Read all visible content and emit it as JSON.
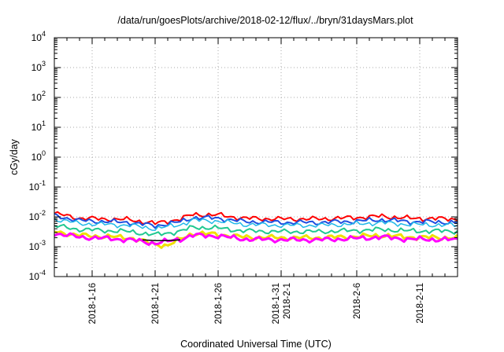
{
  "chart_data": {
    "type": "line",
    "title": "/data/run/goesPlots/archive/2018-02-12/flux/../bryn/31daysMars.plot",
    "xlabel": "Coordinated Universal Time (UTC)",
    "ylabel": "cGy/day",
    "y_scale": "log",
    "ylim": [
      0.0001,
      10000
    ],
    "xlim": [
      "2018-01-13",
      "2018-02-14"
    ],
    "grid": true,
    "y_ticks": [
      {
        "base": "10",
        "exp": "-4"
      },
      {
        "base": "10",
        "exp": "-3"
      },
      {
        "base": "10",
        "exp": "-2"
      },
      {
        "base": "10",
        "exp": "-1"
      },
      {
        "base": "10",
        "exp": "0"
      },
      {
        "base": "10",
        "exp": "1"
      },
      {
        "base": "10",
        "exp": "2"
      },
      {
        "base": "10",
        "exp": "3"
      },
      {
        "base": "10",
        "exp": "4"
      }
    ],
    "x_ticks": [
      {
        "value": "2018-01-16",
        "lines": [
          "2018-1-16"
        ]
      },
      {
        "value": "2018-01-21",
        "lines": [
          "2018-1-21"
        ]
      },
      {
        "value": "2018-01-26",
        "lines": [
          "2018-1-26"
        ]
      },
      {
        "value": "2018-01-31",
        "lines": [
          "2018-1-31",
          "2018-2-1"
        ]
      },
      {
        "value": "2018-02-06",
        "lines": [
          "2018-2-6"
        ]
      },
      {
        "value": "2018-02-11",
        "lines": [
          "2018-2-11"
        ]
      }
    ],
    "series": [
      {
        "color": "#ff0000",
        "width": 2,
        "values": [
          {
            "x": "2018-01-13",
            "y": 0.013
          },
          {
            "x": "2018-01-15",
            "y": 0.009
          },
          {
            "x": "2018-01-17",
            "y": 0.0085
          },
          {
            "x": "2018-01-19",
            "y": 0.008
          },
          {
            "x": "2018-01-21",
            "y": 0.006
          },
          {
            "x": "2018-01-23",
            "y": 0.0085
          },
          {
            "x": "2018-01-24",
            "y": 0.012
          },
          {
            "x": "2018-01-26",
            "y": 0.0115
          },
          {
            "x": "2018-01-28",
            "y": 0.009
          },
          {
            "x": "2018-01-31",
            "y": 0.0085
          },
          {
            "x": "2018-02-03",
            "y": 0.0085
          },
          {
            "x": "2018-02-06",
            "y": 0.0095
          },
          {
            "x": "2018-02-08",
            "y": 0.0105
          },
          {
            "x": "2018-02-10",
            "y": 0.009
          },
          {
            "x": "2018-02-14",
            "y": 0.0085
          }
        ]
      },
      {
        "color": "#1f4fe0",
        "width": 2,
        "values": [
          {
            "x": "2018-01-13",
            "y": 0.011
          },
          {
            "x": "2018-01-15",
            "y": 0.0075
          },
          {
            "x": "2018-01-17",
            "y": 0.007
          },
          {
            "x": "2018-01-19",
            "y": 0.0065
          },
          {
            "x": "2018-01-21",
            "y": 0.005
          },
          {
            "x": "2018-01-23",
            "y": 0.0068
          },
          {
            "x": "2018-01-24",
            "y": 0.0095
          },
          {
            "x": "2018-01-26",
            "y": 0.009
          },
          {
            "x": "2018-01-28",
            "y": 0.007
          },
          {
            "x": "2018-01-31",
            "y": 0.0065
          },
          {
            "x": "2018-02-03",
            "y": 0.0065
          },
          {
            "x": "2018-02-06",
            "y": 0.0072
          },
          {
            "x": "2018-02-08",
            "y": 0.008
          },
          {
            "x": "2018-02-10",
            "y": 0.007
          },
          {
            "x": "2018-02-14",
            "y": 0.0065
          }
        ]
      },
      {
        "color": "#20b8e8",
        "width": 1.5,
        "values": [
          {
            "x": "2018-01-13",
            "y": 0.0085
          },
          {
            "x": "2018-01-15",
            "y": 0.006
          },
          {
            "x": "2018-01-17",
            "y": 0.0056
          },
          {
            "x": "2018-01-19",
            "y": 0.0052
          },
          {
            "x": "2018-01-21",
            "y": 0.004
          },
          {
            "x": "2018-01-23",
            "y": 0.0055
          },
          {
            "x": "2018-01-24",
            "y": 0.0078
          },
          {
            "x": "2018-01-26",
            "y": 0.0072
          },
          {
            "x": "2018-01-28",
            "y": 0.0056
          },
          {
            "x": "2018-01-31",
            "y": 0.0052
          },
          {
            "x": "2018-02-03",
            "y": 0.0052
          },
          {
            "x": "2018-02-06",
            "y": 0.0058
          },
          {
            "x": "2018-02-08",
            "y": 0.0064
          },
          {
            "x": "2018-02-10",
            "y": 0.0056
          },
          {
            "x": "2018-02-14",
            "y": 0.0052
          }
        ]
      },
      {
        "color": "#20c890",
        "width": 2,
        "values": [
          {
            "x": "2018-01-13",
            "y": 0.005
          },
          {
            "x": "2018-01-15",
            "y": 0.0038
          },
          {
            "x": "2018-01-17",
            "y": 0.0035
          },
          {
            "x": "2018-01-19",
            "y": 0.0032
          },
          {
            "x": "2018-01-21",
            "y": 0.0025
          },
          {
            "x": "2018-01-23",
            "y": 0.0033
          },
          {
            "x": "2018-01-24",
            "y": 0.0045
          },
          {
            "x": "2018-01-26",
            "y": 0.0042
          },
          {
            "x": "2018-01-28",
            "y": 0.0034
          },
          {
            "x": "2018-01-31",
            "y": 0.0032
          },
          {
            "x": "2018-02-03",
            "y": 0.0032
          },
          {
            "x": "2018-02-06",
            "y": 0.0035
          },
          {
            "x": "2018-02-08",
            "y": 0.0038
          },
          {
            "x": "2018-02-10",
            "y": 0.0034
          },
          {
            "x": "2018-02-14",
            "y": 0.0033
          }
        ]
      },
      {
        "color": "#f0e000",
        "width": 3,
        "values": [
          {
            "x": "2018-01-13",
            "y": 0.0032
          },
          {
            "x": "2018-01-15",
            "y": 0.0024
          },
          {
            "x": "2018-01-17",
            "y": 0.0022
          },
          {
            "x": "2018-01-19",
            "y": 0.002
          },
          {
            "x": "2018-01-21",
            "y": 0.0012
          },
          {
            "x": "2018-01-22",
            "y": 0.0011
          },
          {
            "x": "2018-01-23",
            "y": 0.0018
          },
          {
            "x": "2018-01-24",
            "y": 0.0028
          },
          {
            "x": "2018-01-26",
            "y": 0.0026
          },
          {
            "x": "2018-01-28",
            "y": 0.0021
          },
          {
            "x": "2018-01-31",
            "y": 0.002
          },
          {
            "x": "2018-02-03",
            "y": 0.002
          },
          {
            "x": "2018-02-06",
            "y": 0.0022
          },
          {
            "x": "2018-02-08",
            "y": 0.0024
          },
          {
            "x": "2018-02-10",
            "y": 0.0021
          },
          {
            "x": "2018-02-14",
            "y": 0.002
          }
        ]
      },
      {
        "color": "#ff00ff",
        "width": 3,
        "values": [
          {
            "x": "2018-01-13",
            "y": 0.0028
          },
          {
            "x": "2018-01-15",
            "y": 0.0021
          },
          {
            "x": "2018-01-17",
            "y": 0.0019
          },
          {
            "x": "2018-01-19",
            "y": 0.0017
          },
          {
            "x": "2018-01-21",
            "y": 0.0013
          },
          {
            "x": "2018-01-23",
            "y": 0.0018
          },
          {
            "x": "2018-01-24",
            "y": 0.0024
          },
          {
            "x": "2018-01-26",
            "y": 0.0023
          },
          {
            "x": "2018-01-28",
            "y": 0.0018
          },
          {
            "x": "2018-01-31",
            "y": 0.0017
          },
          {
            "x": "2018-02-03",
            "y": 0.0017
          },
          {
            "x": "2018-02-06",
            "y": 0.0019
          },
          {
            "x": "2018-02-08",
            "y": 0.0021
          },
          {
            "x": "2018-02-10",
            "y": 0.0018
          },
          {
            "x": "2018-02-14",
            "y": 0.0017
          }
        ]
      },
      {
        "color": "#000000",
        "width": 1.5,
        "values": [
          {
            "x": "2018-01-20",
            "y": 0.0017
          },
          {
            "x": "2018-01-21",
            "y": 0.0016
          },
          {
            "x": "2018-01-22",
            "y": 0.0016
          },
          {
            "x": "2018-01-23",
            "y": 0.0017
          }
        ]
      }
    ]
  }
}
